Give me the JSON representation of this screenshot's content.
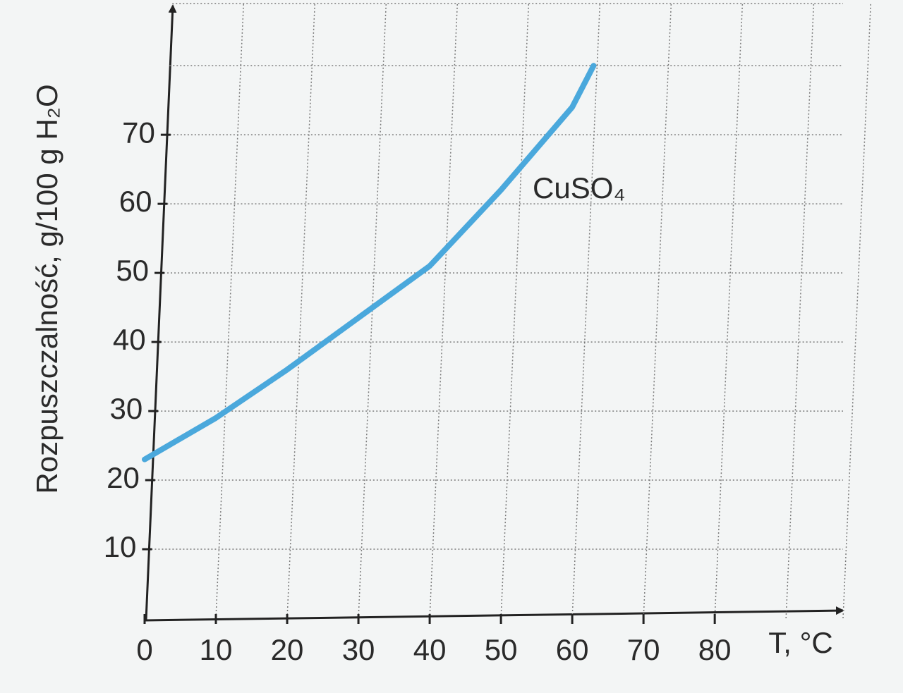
{
  "chart_data": {
    "type": "line",
    "x_label": "T, °C",
    "y_label": "Rozpuszczalność, g/100 g H₂O",
    "x": [
      0,
      10,
      20,
      30,
      40,
      50,
      60,
      63
    ],
    "series": [
      {
        "name": "CuSO₄",
        "color": "#4aa8dc",
        "values": [
          23,
          29,
          36,
          43.5,
          51,
          62,
          74,
          80
        ]
      }
    ],
    "xlim": [
      0,
      98
    ],
    "ylim": [
      0,
      89
    ],
    "xticks": [
      0,
      10,
      20,
      30,
      40,
      50,
      60,
      70,
      80
    ],
    "yticks": [
      10,
      20,
      30,
      40,
      50,
      60,
      70
    ],
    "xgrid": [
      10,
      20,
      30,
      40,
      50,
      60,
      70,
      80,
      90,
      98
    ],
    "ygrid": [
      10,
      20,
      30,
      40,
      50,
      60,
      70,
      80,
      89
    ],
    "grid": true
  }
}
